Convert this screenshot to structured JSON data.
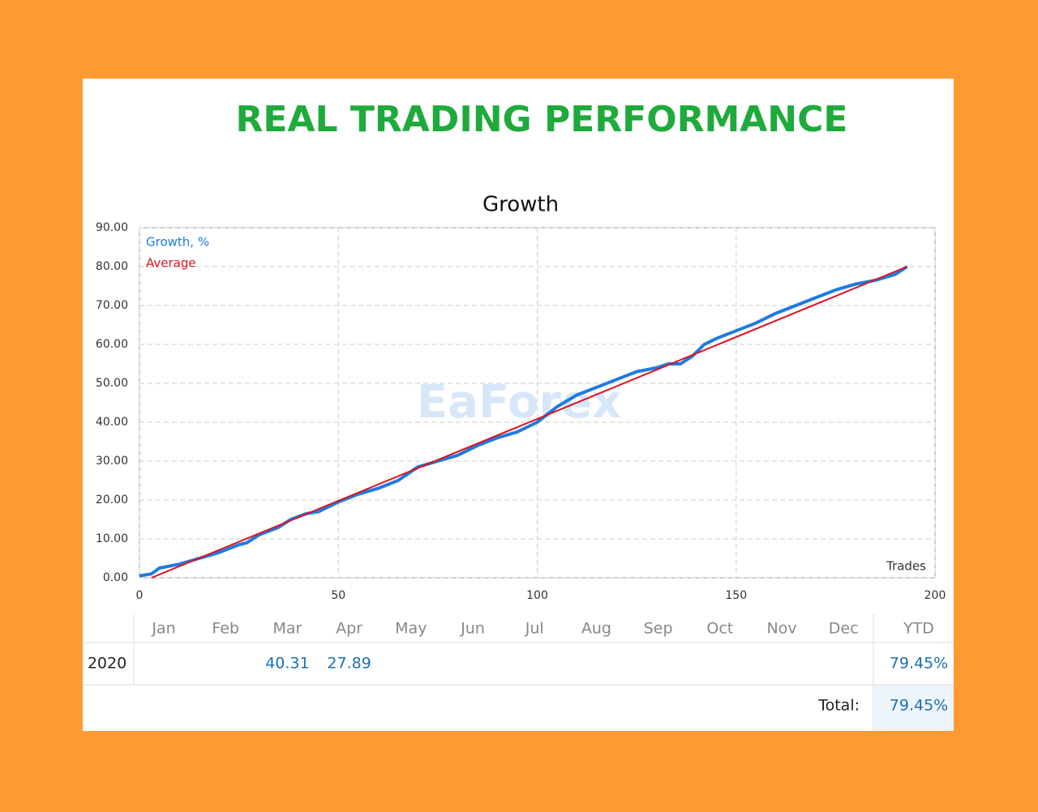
{
  "header": {
    "title": "REAL TRADING PERFORMANCE",
    "watermark": "EaForex"
  },
  "chart_data": {
    "type": "line",
    "title": "Growth",
    "x_label": "Trades",
    "xlim": [
      0,
      200
    ],
    "xticks": [
      0,
      50,
      100,
      150,
      200
    ],
    "ylim": [
      0,
      90
    ],
    "yticks": [
      {
        "value": 0,
        "label": "0.00"
      },
      {
        "value": 10,
        "label": "10.00"
      },
      {
        "value": 20,
        "label": "20.00"
      },
      {
        "value": 30,
        "label": "30.00"
      },
      {
        "value": 40,
        "label": "40.00"
      },
      {
        "value": 50,
        "label": "50.00"
      },
      {
        "value": 60,
        "label": "60.00"
      },
      {
        "value": 70,
        "label": "70.00"
      },
      {
        "value": 80,
        "label": "80.00"
      },
      {
        "value": 90,
        "label": "90.00"
      }
    ],
    "grid": true,
    "legend": "top-left",
    "series": [
      {
        "name": "Growth, %",
        "color": "#1e7be0",
        "x": [
          0,
          3,
          5,
          10,
          15,
          20,
          25,
          27,
          30,
          35,
          38,
          42,
          45,
          48,
          50,
          55,
          60,
          65,
          70,
          75,
          80,
          85,
          90,
          95,
          100,
          105,
          110,
          115,
          120,
          125,
          130,
          133,
          136,
          139,
          142,
          145,
          150,
          155,
          160,
          165,
          170,
          175,
          180,
          185,
          190,
          193
        ],
        "values": [
          0.5,
          1,
          2.5,
          3.5,
          5,
          6.5,
          8.5,
          9,
          11,
          13,
          15,
          16.5,
          17,
          18.5,
          19.5,
          21.5,
          23,
          25,
          28.5,
          30,
          31.5,
          34,
          36,
          37.5,
          40,
          44,
          47,
          49,
          51,
          53,
          54,
          55,
          55,
          57,
          60,
          61.5,
          63.5,
          65.5,
          68,
          70,
          72,
          74,
          75.5,
          76.5,
          78,
          80
        ]
      },
      {
        "name": "Average",
        "color": "#e0101e",
        "x": [
          3,
          193
        ],
        "values": [
          0,
          80
        ]
      }
    ]
  },
  "table": {
    "columns": [
      "Jan",
      "Feb",
      "Mar",
      "Apr",
      "May",
      "Jun",
      "Jul",
      "Aug",
      "Sep",
      "Oct",
      "Nov",
      "Dec",
      "YTD"
    ],
    "rows": [
      {
        "label": "2020",
        "values": [
          null,
          null,
          40.31,
          27.89,
          null,
          null,
          null,
          null,
          null,
          null,
          null,
          null,
          "79.45%"
        ]
      }
    ],
    "total": {
      "label": "Total:",
      "value": "79.45%"
    }
  }
}
